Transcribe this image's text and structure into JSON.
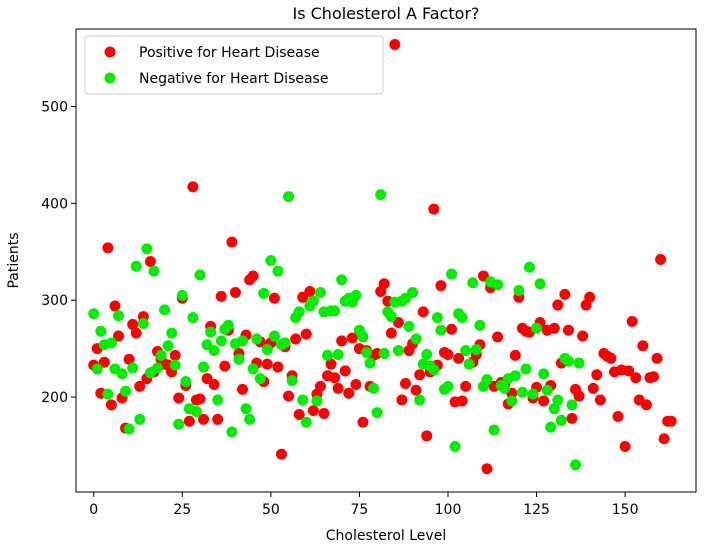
{
  "chart_data": {
    "type": "scatter",
    "title": "Is Cholesterol A Factor?",
    "xlabel": "Cholesterol Level",
    "ylabel": "Patients",
    "xlim": [
      -5,
      170
    ],
    "ylim": [
      102,
      580
    ],
    "xticks": [
      0,
      25,
      50,
      75,
      100,
      125,
      150
    ],
    "yticks": [
      200,
      300,
      400,
      500
    ],
    "legend_position": "top-left",
    "series": [
      {
        "name": "Positive for Heart Disease",
        "color": "#ff0000",
        "points": [
          [
            0,
            233
          ],
          [
            1,
            250
          ],
          [
            2,
            204
          ],
          [
            3,
            236
          ],
          [
            4,
            354
          ],
          [
            5,
            192
          ],
          [
            6,
            294
          ],
          [
            7,
            263
          ],
          [
            8,
            199
          ],
          [
            9,
            168
          ],
          [
            10,
            239
          ],
          [
            11,
            275
          ],
          [
            12,
            266
          ],
          [
            13,
            211
          ],
          [
            14,
            283
          ],
          [
            15,
            219
          ],
          [
            16,
            340
          ],
          [
            17,
            226
          ],
          [
            18,
            247
          ],
          [
            19,
            239
          ],
          [
            20,
            234
          ],
          [
            21,
            233
          ],
          [
            22,
            226
          ],
          [
            23,
            243
          ],
          [
            24,
            199
          ],
          [
            25,
            302
          ],
          [
            26,
            212
          ],
          [
            27,
            175
          ],
          [
            28,
            417
          ],
          [
            29,
            197
          ],
          [
            30,
            198
          ],
          [
            31,
            177
          ],
          [
            32,
            219
          ],
          [
            33,
            273
          ],
          [
            34,
            213
          ],
          [
            35,
            177
          ],
          [
            36,
            304
          ],
          [
            37,
            232
          ],
          [
            38,
            269
          ],
          [
            39,
            360
          ],
          [
            40,
            308
          ],
          [
            41,
            245
          ],
          [
            42,
            208
          ],
          [
            43,
            264
          ],
          [
            44,
            321
          ],
          [
            45,
            325
          ],
          [
            46,
            235
          ],
          [
            47,
            257
          ],
          [
            48,
            216
          ],
          [
            49,
            234
          ],
          [
            50,
            256
          ],
          [
            51,
            302
          ],
          [
            52,
            231
          ],
          [
            53,
            141
          ],
          [
            54,
            252
          ],
          [
            55,
            201
          ],
          [
            56,
            222
          ],
          [
            57,
            260
          ],
          [
            58,
            182
          ],
          [
            59,
            303
          ],
          [
            60,
            265
          ],
          [
            61,
            309
          ],
          [
            62,
            186
          ],
          [
            63,
            203
          ],
          [
            64,
            211
          ],
          [
            65,
            183
          ],
          [
            66,
            222
          ],
          [
            67,
            234
          ],
          [
            68,
            220
          ],
          [
            69,
            209
          ],
          [
            70,
            258
          ],
          [
            71,
            227
          ],
          [
            72,
            204
          ],
          [
            73,
            261
          ],
          [
            74,
            213
          ],
          [
            75,
            250
          ],
          [
            76,
            174
          ],
          [
            77,
            248
          ],
          [
            78,
            211
          ],
          [
            79,
            243
          ],
          [
            80,
            245
          ],
          [
            81,
            309
          ],
          [
            82,
            317
          ],
          [
            83,
            299
          ],
          [
            84,
            266
          ],
          [
            85,
            564
          ],
          [
            86,
            277
          ],
          [
            87,
            197
          ],
          [
            88,
            214
          ],
          [
            89,
            248
          ],
          [
            90,
            255
          ],
          [
            91,
            207
          ],
          [
            92,
            223
          ],
          [
            93,
            288
          ],
          [
            94,
            160
          ],
          [
            95,
            226
          ],
          [
            96,
            394
          ],
          [
            97,
            233
          ],
          [
            98,
            315
          ],
          [
            99,
            246
          ],
          [
            100,
            244
          ],
          [
            101,
            270
          ],
          [
            102,
            195
          ],
          [
            103,
            240
          ],
          [
            104,
            196
          ],
          [
            105,
            211
          ],
          [
            106,
            234
          ],
          [
            107,
            236
          ],
          [
            108,
            244
          ],
          [
            109,
            254
          ],
          [
            110,
            325
          ],
          [
            111,
            126
          ],
          [
            112,
            313
          ],
          [
            113,
            211
          ],
          [
            114,
            262
          ],
          [
            115,
            215
          ],
          [
            116,
            214
          ],
          [
            117,
            193
          ],
          [
            118,
            204
          ],
          [
            119,
            243
          ],
          [
            120,
            303
          ],
          [
            121,
            271
          ],
          [
            122,
            268
          ],
          [
            123,
            267
          ],
          [
            124,
            199
          ],
          [
            125,
            210
          ],
          [
            126,
            277
          ],
          [
            127,
            196
          ],
          [
            128,
            269
          ],
          [
            129,
            212
          ],
          [
            130,
            271
          ],
          [
            131,
            295
          ],
          [
            132,
            235
          ],
          [
            133,
            306
          ],
          [
            134,
            269
          ],
          [
            135,
            178
          ],
          [
            136,
            208
          ],
          [
            137,
            201
          ],
          [
            138,
            263
          ],
          [
            139,
            295
          ],
          [
            140,
            303
          ],
          [
            141,
            209
          ],
          [
            142,
            223
          ],
          [
            143,
            197
          ],
          [
            144,
            245
          ],
          [
            145,
            242
          ],
          [
            146,
            240
          ],
          [
            147,
            226
          ],
          [
            148,
            180
          ],
          [
            149,
            228
          ],
          [
            150,
            149
          ],
          [
            151,
            227
          ],
          [
            152,
            278
          ],
          [
            153,
            220
          ],
          [
            154,
            197
          ],
          [
            155,
            253
          ],
          [
            156,
            192
          ],
          [
            157,
            220
          ],
          [
            158,
            221
          ],
          [
            159,
            240
          ],
          [
            160,
            342
          ],
          [
            161,
            157
          ],
          [
            162,
            175
          ],
          [
            163,
            175
          ]
        ]
      },
      {
        "name": "Negative for Heart Disease",
        "color": "#00ee00",
        "points": [
          [
            0,
            286
          ],
          [
            1,
            229
          ],
          [
            2,
            268
          ],
          [
            3,
            254
          ],
          [
            4,
            203
          ],
          [
            5,
            256
          ],
          [
            6,
            229
          ],
          [
            7,
            284
          ],
          [
            8,
            224
          ],
          [
            9,
            206
          ],
          [
            10,
            167
          ],
          [
            11,
            230
          ],
          [
            12,
            335
          ],
          [
            13,
            177
          ],
          [
            14,
            276
          ],
          [
            15,
            353
          ],
          [
            16,
            225
          ],
          [
            17,
            330
          ],
          [
            18,
            230
          ],
          [
            19,
            243
          ],
          [
            20,
            290
          ],
          [
            21,
            253
          ],
          [
            22,
            266
          ],
          [
            23,
            233
          ],
          [
            24,
            172
          ],
          [
            25,
            305
          ],
          [
            26,
            216
          ],
          [
            27,
            188
          ],
          [
            28,
            282
          ],
          [
            29,
            185
          ],
          [
            30,
            326
          ],
          [
            31,
            231
          ],
          [
            32,
            254
          ],
          [
            33,
            267
          ],
          [
            34,
            248
          ],
          [
            35,
            197
          ],
          [
            36,
            258
          ],
          [
            37,
            270
          ],
          [
            38,
            274
          ],
          [
            39,
            164
          ],
          [
            40,
            255
          ],
          [
            41,
            239
          ],
          [
            42,
            258
          ],
          [
            43,
            188
          ],
          [
            44,
            177
          ],
          [
            45,
            229
          ],
          [
            46,
            260
          ],
          [
            47,
            219
          ],
          [
            48,
            307
          ],
          [
            49,
            249
          ],
          [
            50,
            341
          ],
          [
            51,
            263
          ],
          [
            52,
            330
          ],
          [
            53,
            254
          ],
          [
            54,
            256
          ],
          [
            55,
            407
          ],
          [
            56,
            217
          ],
          [
            57,
            282
          ],
          [
            58,
            288
          ],
          [
            59,
            197
          ],
          [
            60,
            174
          ],
          [
            61,
            294
          ],
          [
            62,
            299
          ],
          [
            63,
            196
          ],
          [
            64,
            308
          ],
          [
            65,
            288
          ],
          [
            66,
            243
          ],
          [
            67,
            289
          ],
          [
            68,
            289
          ],
          [
            69,
            244
          ],
          [
            70,
            321
          ],
          [
            71,
            299
          ],
          [
            72,
            302
          ],
          [
            73,
            298
          ],
          [
            74,
            305
          ],
          [
            75,
            269
          ],
          [
            76,
            262
          ],
          [
            77,
            246
          ],
          [
            78,
            235
          ],
          [
            79,
            209
          ],
          [
            80,
            184
          ],
          [
            81,
            409
          ],
          [
            82,
            245
          ],
          [
            83,
            288
          ],
          [
            84,
            283
          ],
          [
            85,
            298
          ],
          [
            86,
            248
          ],
          [
            87,
            299
          ],
          [
            88,
            302
          ],
          [
            89,
            273
          ],
          [
            90,
            308
          ],
          [
            91,
            260
          ],
          [
            92,
            197
          ],
          [
            93,
            234
          ],
          [
            94,
            244
          ],
          [
            95,
            232
          ],
          [
            96,
            228
          ],
          [
            97,
            282
          ],
          [
            98,
            269
          ],
          [
            99,
            208
          ],
          [
            100,
            211
          ],
          [
            101,
            327
          ],
          [
            102,
            149
          ],
          [
            103,
            286
          ],
          [
            104,
            282
          ],
          [
            105,
            248
          ],
          [
            106,
            234
          ],
          [
            107,
            318
          ],
          [
            108,
            249
          ],
          [
            109,
            274
          ],
          [
            110,
            211
          ],
          [
            111,
            218
          ],
          [
            112,
            319
          ],
          [
            113,
            166
          ],
          [
            114,
            316
          ],
          [
            115,
            212
          ],
          [
            116,
            209
          ],
          [
            117,
            219
          ],
          [
            118,
            196
          ],
          [
            119,
            222
          ],
          [
            120,
            310
          ],
          [
            121,
            205
          ],
          [
            122,
            229
          ],
          [
            123,
            334
          ],
          [
            124,
            203
          ],
          [
            125,
            271
          ],
          [
            126,
            317
          ],
          [
            127,
            224
          ],
          [
            128,
            207
          ],
          [
            129,
            169
          ],
          [
            130,
            188
          ],
          [
            131,
            197
          ],
          [
            132,
            176
          ],
          [
            133,
            240
          ],
          [
            134,
            237
          ],
          [
            135,
            192
          ],
          [
            136,
            130
          ],
          [
            137,
            235
          ]
        ]
      }
    ]
  }
}
